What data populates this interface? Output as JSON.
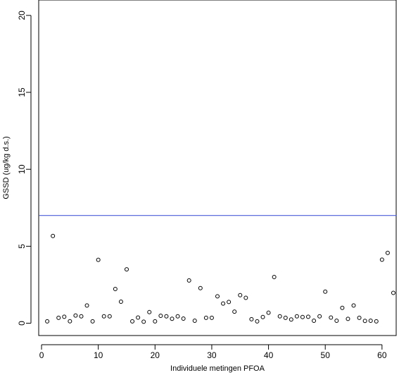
{
  "chart_data": {
    "type": "scatter",
    "xlabel": "Individuele metingen PFOA",
    "ylabel": "GSSD (ug/kg d.s.)",
    "xlim": [
      -0.5,
      62.5
    ],
    "ylim": [
      -0.8,
      21.0
    ],
    "x_ticks": [
      0,
      10,
      20,
      30,
      40,
      50,
      60
    ],
    "y_ticks": [
      0,
      5,
      10,
      15,
      20
    ],
    "grid": false,
    "legend": "none",
    "reference_line": {
      "y": 7.0,
      "color": "#4b5bd8"
    },
    "point_color": "#000000",
    "series": [
      {
        "x": [
          1,
          2,
          3,
          4,
          5,
          6,
          7,
          8,
          9,
          10,
          11,
          12,
          13,
          14,
          15,
          16,
          17,
          18,
          19,
          20,
          21,
          22,
          23,
          24,
          25,
          26,
          27,
          28,
          29,
          30,
          31,
          32,
          33,
          34,
          35,
          36,
          37,
          38,
          39,
          40,
          41,
          42,
          43,
          44,
          45,
          46,
          47,
          48,
          49,
          50,
          51,
          52,
          53,
          54,
          55,
          56,
          57,
          58,
          59,
          60,
          61,
          62
        ],
        "y": [
          0.12,
          5.67,
          0.35,
          0.42,
          0.13,
          0.5,
          0.45,
          1.15,
          0.12,
          4.12,
          0.45,
          0.45,
          2.22,
          1.4,
          3.5,
          0.12,
          0.37,
          0.1,
          0.72,
          0.12,
          0.48,
          0.45,
          0.29,
          0.45,
          0.3,
          2.78,
          0.16,
          2.28,
          0.35,
          0.35,
          1.75,
          1.28,
          1.38,
          0.75,
          1.82,
          1.65,
          0.26,
          0.12,
          0.4,
          0.68,
          3.0,
          0.45,
          0.35,
          0.24,
          0.45,
          0.4,
          0.42,
          0.16,
          0.45,
          2.05,
          0.37,
          0.16,
          1.0,
          0.28,
          1.15,
          0.35,
          0.15,
          0.16,
          0.12,
          4.13,
          4.57,
          1.97
        ]
      }
    ]
  }
}
